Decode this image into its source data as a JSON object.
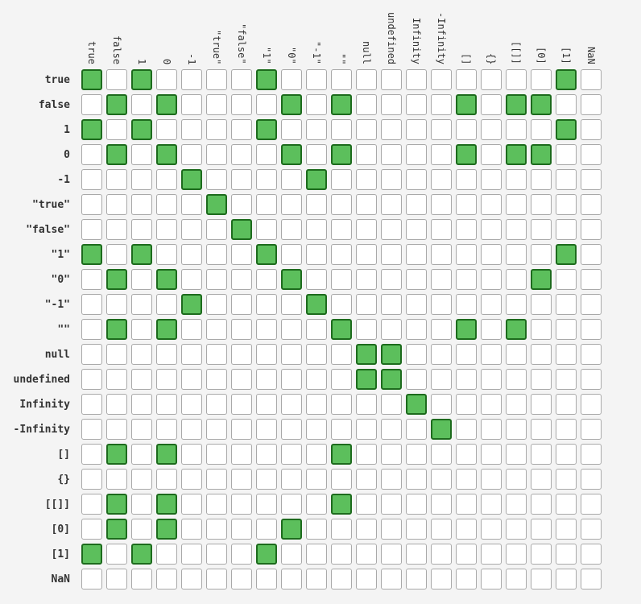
{
  "chart_data": {
    "type": "heatmap",
    "title": "",
    "colors": {
      "equal_fill": "#5cbf5c",
      "equal_border": "#1d6b1d",
      "not_equal_fill": "#ffffff",
      "not_equal_border": "#a9a9a9",
      "background": "#f4f4f4"
    },
    "labels": [
      "true",
      "false",
      "1",
      "0",
      "-1",
      "\"true\"",
      "\"false\"",
      "\"1\"",
      "\"0\"",
      "\"-1\"",
      "\"\"",
      "null",
      "undefined",
      "Infinity",
      "-Infinity",
      "[]",
      "{}",
      "[[]]",
      "[0]",
      "[1]",
      "NaN"
    ],
    "equal_pairs": [
      [
        0,
        0
      ],
      [
        0,
        2
      ],
      [
        0,
        7
      ],
      [
        0,
        19
      ],
      [
        1,
        1
      ],
      [
        1,
        3
      ],
      [
        1,
        8
      ],
      [
        1,
        10
      ],
      [
        1,
        15
      ],
      [
        1,
        17
      ],
      [
        1,
        18
      ],
      [
        2,
        0
      ],
      [
        2,
        2
      ],
      [
        2,
        7
      ],
      [
        2,
        19
      ],
      [
        3,
        1
      ],
      [
        3,
        3
      ],
      [
        3,
        8
      ],
      [
        3,
        10
      ],
      [
        3,
        15
      ],
      [
        3,
        17
      ],
      [
        3,
        18
      ],
      [
        4,
        4
      ],
      [
        4,
        9
      ],
      [
        5,
        5
      ],
      [
        6,
        6
      ],
      [
        7,
        0
      ],
      [
        7,
        2
      ],
      [
        7,
        7
      ],
      [
        7,
        19
      ],
      [
        8,
        1
      ],
      [
        8,
        3
      ],
      [
        8,
        8
      ],
      [
        8,
        18
      ],
      [
        9,
        4
      ],
      [
        9,
        9
      ],
      [
        10,
        1
      ],
      [
        10,
        3
      ],
      [
        10,
        10
      ],
      [
        10,
        15
      ],
      [
        10,
        17
      ],
      [
        11,
        11
      ],
      [
        11,
        12
      ],
      [
        12,
        11
      ],
      [
        12,
        12
      ],
      [
        13,
        13
      ],
      [
        14,
        14
      ],
      [
        15,
        1
      ],
      [
        15,
        3
      ],
      [
        15,
        10
      ],
      [
        17,
        1
      ],
      [
        17,
        3
      ],
      [
        17,
        10
      ],
      [
        18,
        1
      ],
      [
        18,
        3
      ],
      [
        18,
        8
      ],
      [
        19,
        0
      ],
      [
        19,
        2
      ],
      [
        19,
        7
      ]
    ]
  }
}
